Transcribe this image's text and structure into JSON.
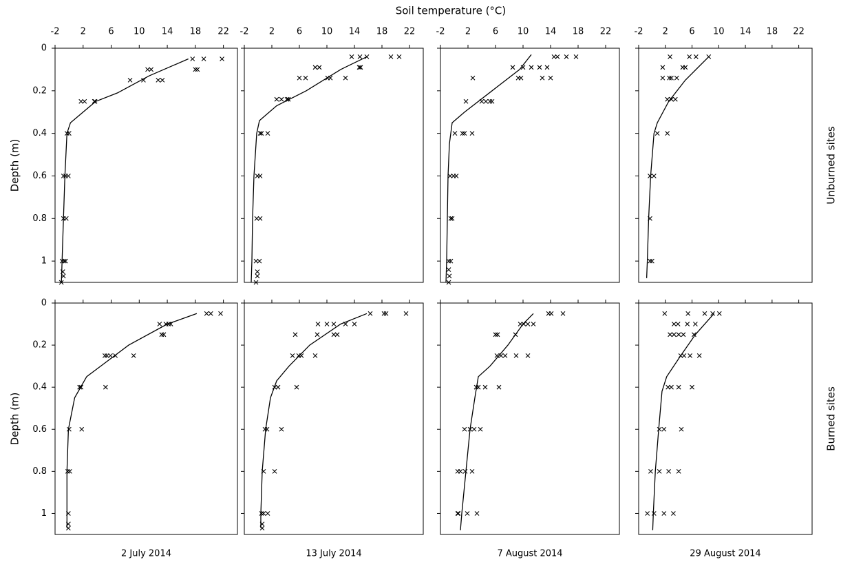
{
  "figure": {
    "x_label": "Soil temperature (°C)"
  },
  "chart_data": [
    {
      "type": "scatter",
      "xlim": [
        -2,
        24
      ],
      "xticks": [
        -2,
        2,
        6,
        10,
        14,
        18,
        22
      ],
      "ylim": [
        0,
        1.1
      ],
      "yticks": [
        0,
        0.2,
        0.4,
        0.6,
        0.8,
        1
      ],
      "y_inverted": true,
      "x_tick_labels": true,
      "y_tick_labels": true,
      "y_label": "Depth (m)",
      "series": [
        {
          "style": "cross",
          "color": "#000000",
          "x": [
            17.6,
            19.2,
            21.8,
            11.2,
            11.7,
            18.0,
            18.3,
            8.7,
            10.6,
            12.7,
            13.3,
            1.7,
            2.2,
            3.6,
            3.7,
            -0.3,
            0,
            -0.8,
            -0.5,
            -0.1,
            -0.8,
            -0.4,
            -1.0,
            -0.7,
            -0.5,
            -0.9,
            -0.8,
            -1.1
          ],
          "values": [
            0.05,
            0.05,
            0.05,
            0.1,
            0.1,
            0.1,
            0.1,
            0.15,
            0.15,
            0.15,
            0.15,
            0.25,
            0.25,
            0.25,
            0.25,
            0.4,
            0.4,
            0.6,
            0.6,
            0.6,
            0.8,
            0.8,
            1,
            1,
            1,
            1.05,
            1.07,
            1.1
          ]
        },
        {
          "style": "line",
          "color": "#000000",
          "x": [
            17.0,
            11.4,
            6.9,
            3.8,
            0.2,
            -0.3,
            -0.6,
            -0.8,
            -1.0,
            -1.1
          ],
          "values": [
            0.05,
            0.13,
            0.21,
            0.25,
            0.35,
            0.4,
            0.6,
            0.8,
            1,
            1.1
          ]
        }
      ]
    },
    {
      "type": "scatter",
      "xlim": [
        -2,
        24
      ],
      "xticks": [
        -2,
        2,
        6,
        10,
        14,
        18,
        22
      ],
      "ylim": [
        0,
        1.1
      ],
      "yticks": [
        0,
        0.2,
        0.4,
        0.6,
        0.8,
        1
      ],
      "y_inverted": true,
      "x_tick_labels": true,
      "y_tick_labels": false,
      "series": [
        {
          "style": "cross",
          "color": "#000000",
          "x": [
            13.6,
            14.8,
            15.8,
            19.3,
            20.5,
            8.3,
            8.9,
            14.7,
            14.9,
            6.0,
            6.9,
            10.1,
            10.5,
            12.7,
            2.7,
            3.4,
            4.2,
            4.4,
            0.3,
            0.5,
            1.4,
            -0.1,
            0.3,
            -0.2,
            0.3,
            -0.3,
            0.2,
            -0.1,
            -0.1,
            -0.3
          ],
          "values": [
            0.04,
            0.04,
            0.04,
            0.04,
            0.04,
            0.09,
            0.09,
            0.09,
            0.09,
            0.14,
            0.14,
            0.14,
            0.14,
            0.14,
            0.24,
            0.24,
            0.24,
            0.24,
            0.4,
            0.4,
            0.4,
            0.6,
            0.6,
            0.8,
            0.8,
            1,
            1,
            1.05,
            1.07,
            1.1
          ]
        },
        {
          "style": "line",
          "color": "#000000",
          "x": [
            15.8,
            12,
            7,
            2.7,
            0.2,
            -0.2,
            -0.6,
            -0.8,
            -0.9,
            -1.0
          ],
          "values": [
            0.04,
            0.1,
            0.2,
            0.27,
            0.34,
            0.4,
            0.6,
            0.8,
            1,
            1.1
          ]
        }
      ]
    },
    {
      "type": "scatter",
      "xlim": [
        -2,
        24
      ],
      "xticks": [
        -2,
        2,
        6,
        10,
        14,
        18,
        22
      ],
      "ylim": [
        0,
        1.1
      ],
      "yticks": [
        0,
        0.2,
        0.4,
        0.6,
        0.8,
        1
      ],
      "y_inverted": true,
      "x_tick_labels": true,
      "y_tick_labels": false,
      "series": [
        {
          "style": "cross",
          "color": "#000000",
          "x": [
            14.5,
            15,
            16.3,
            17.7,
            8.5,
            10,
            11.2,
            12.4,
            13.5,
            2.7,
            9.3,
            9.7,
            12.8,
            14,
            1.7,
            4,
            4.6,
            5.2,
            5.5,
            0.1,
            1.2,
            1.5,
            2.6,
            -0.6,
            -0.1,
            0.3,
            -0.5,
            -0.3,
            -0.8,
            -0.5,
            -0.8,
            -0.7,
            -0.8
          ],
          "values": [
            0.04,
            0.04,
            0.04,
            0.04,
            0.09,
            0.09,
            0.09,
            0.09,
            0.09,
            0.14,
            0.14,
            0.14,
            0.14,
            0.14,
            0.25,
            0.25,
            0.25,
            0.25,
            0.25,
            0.4,
            0.4,
            0.4,
            0.4,
            0.6,
            0.6,
            0.6,
            0.8,
            0.8,
            1,
            1,
            1.04,
            1.07,
            1.1
          ]
        },
        {
          "style": "line",
          "color": "#000000",
          "x": [
            11.2,
            9.5,
            5.5,
            1.5,
            -0.3,
            -0.7,
            -0.9,
            -1.0,
            -1.1,
            -1.2
          ],
          "values": [
            0.03,
            0.1,
            0.2,
            0.3,
            0.35,
            0.45,
            0.6,
            0.8,
            1,
            1.1
          ]
        }
      ]
    },
    {
      "type": "scatter",
      "xlim": [
        -2,
        24
      ],
      "xticks": [
        -2,
        2,
        6,
        10,
        14,
        18,
        22
      ],
      "ylim": [
        0,
        1.1
      ],
      "yticks": [
        0,
        0.2,
        0.4,
        0.6,
        0.8,
        1
      ],
      "y_inverted": true,
      "x_tick_labels": true,
      "y_tick_labels": false,
      "row_label": "Unburned sites",
      "series": [
        {
          "style": "cross",
          "color": "#000000",
          "x": [
            2.7,
            5.6,
            6.6,
            8.5,
            1.6,
            4.6,
            5.0,
            1.6,
            2.6,
            2.9,
            3.7,
            2.3,
            2.9,
            3.5,
            0.8,
            2.3,
            -0.3,
            0.3,
            -0.3,
            -0.3,
            0.0
          ],
          "values": [
            0.04,
            0.04,
            0.04,
            0.04,
            0.09,
            0.09,
            0.09,
            0.14,
            0.14,
            0.14,
            0.14,
            0.24,
            0.24,
            0.24,
            0.4,
            0.4,
            0.6,
            0.6,
            0.8,
            1,
            1
          ]
        },
        {
          "style": "line",
          "color": "#000000",
          "x": [
            8.5,
            5,
            2.5,
            0.8,
            0.3,
            -0.2,
            -0.5,
            -0.7,
            -0.8
          ],
          "values": [
            0.04,
            0.15,
            0.25,
            0.35,
            0.4,
            0.6,
            0.8,
            1,
            1.08
          ]
        }
      ]
    },
    {
      "type": "scatter",
      "title": "2 July 2014",
      "xlim": [
        -2,
        24
      ],
      "xticks": [
        -2,
        2,
        6,
        10,
        14,
        18,
        22
      ],
      "ylim": [
        0,
        1.1
      ],
      "yticks": [
        0,
        0.2,
        0.4,
        0.6,
        0.8,
        1
      ],
      "y_inverted": true,
      "x_tick_labels": false,
      "y_tick_labels": true,
      "y_label": "Depth (m)",
      "series": [
        {
          "style": "cross",
          "color": "#000000",
          "x": [
            19.6,
            20.2,
            21.6,
            12.9,
            13.8,
            14.2,
            14.5,
            13.2,
            13.5,
            5.1,
            5.4,
            5.9,
            6.6,
            9.2,
            1.5,
            1.7,
            5.2,
            0,
            1.8,
            -0.2,
            0.1,
            -0.1,
            -0.1,
            -0.1
          ],
          "values": [
            0.05,
            0.05,
            0.05,
            0.1,
            0.1,
            0.1,
            0.1,
            0.15,
            0.15,
            0.25,
            0.25,
            0.25,
            0.25,
            0.25,
            0.4,
            0.4,
            0.4,
            0.6,
            0.6,
            0.8,
            0.8,
            1,
            1.05,
            1.07
          ]
        },
        {
          "style": "line",
          "color": "#000000",
          "x": [
            18.2,
            14,
            8.5,
            4.5,
            2.5,
            0.8,
            -0.1,
            -0.3,
            -0.3,
            -0.3
          ],
          "values": [
            0.05,
            0.1,
            0.2,
            0.3,
            0.35,
            0.45,
            0.6,
            0.8,
            1,
            1.07
          ]
        }
      ]
    },
    {
      "type": "scatter",
      "title": "13  July 2014",
      "xlim": [
        -2,
        24
      ],
      "xticks": [
        -2,
        2,
        6,
        10,
        14,
        18,
        22
      ],
      "ylim": [
        0,
        1.1
      ],
      "yticks": [
        0,
        0.2,
        0.4,
        0.6,
        0.8,
        1
      ],
      "y_inverted": true,
      "x_tick_labels": false,
      "y_tick_labels": false,
      "series": [
        {
          "style": "cross",
          "color": "#000000",
          "x": [
            16.3,
            18.3,
            18.6,
            21.5,
            8.7,
            10.0,
            11.0,
            12.7,
            14,
            5.4,
            8.6,
            11,
            11.5,
            5.0,
            5.9,
            6.3,
            8.3,
            2.4,
            2.9,
            5.6,
            1.0,
            1.3,
            3.4,
            0.8,
            2.4,
            0.5,
            0.8,
            1.4,
            0.6,
            0.6
          ],
          "values": [
            0.05,
            0.05,
            0.05,
            0.05,
            0.1,
            0.1,
            0.1,
            0.1,
            0.1,
            0.15,
            0.15,
            0.15,
            0.15,
            0.25,
            0.25,
            0.25,
            0.25,
            0.4,
            0.4,
            0.4,
            0.6,
            0.6,
            0.6,
            0.8,
            0.8,
            1,
            1,
            1,
            1.05,
            1.07
          ]
        },
        {
          "style": "line",
          "color": "#000000",
          "x": [
            15.8,
            12,
            7.5,
            4.5,
            2.7,
            1.8,
            1.1,
            0.6,
            0.4,
            0.4
          ],
          "values": [
            0.05,
            0.1,
            0.2,
            0.3,
            0.37,
            0.45,
            0.6,
            0.8,
            1,
            1.07
          ]
        }
      ]
    },
    {
      "type": "scatter",
      "title": "7 August 2014",
      "xlim": [
        -2,
        24
      ],
      "xticks": [
        -2,
        2,
        6,
        10,
        14,
        18,
        22
      ],
      "ylim": [
        0,
        1.1
      ],
      "yticks": [
        0,
        0.2,
        0.4,
        0.6,
        0.8,
        1
      ],
      "y_inverted": true,
      "x_tick_labels": false,
      "y_tick_labels": false,
      "series": [
        {
          "style": "cross",
          "color": "#000000",
          "x": [
            13.7,
            14.1,
            15.8,
            9.6,
            10.1,
            10.7,
            11.5,
            6,
            6.3,
            8.9,
            6.2,
            6.8,
            7.4,
            9,
            10.7,
            3.2,
            3.5,
            4.5,
            6.5,
            1.5,
            2.3,
            2.9,
            3.8,
            0.5,
            0.9,
            1.6,
            2.6,
            0.5,
            0.6,
            1.9,
            3.3
          ],
          "values": [
            0.05,
            0.05,
            0.05,
            0.1,
            0.1,
            0.1,
            0.1,
            0.15,
            0.15,
            0.15,
            0.25,
            0.25,
            0.25,
            0.25,
            0.25,
            0.4,
            0.4,
            0.4,
            0.4,
            0.6,
            0.6,
            0.6,
            0.6,
            0.8,
            0.8,
            0.8,
            0.8,
            1,
            1,
            1,
            1
          ]
        },
        {
          "style": "line",
          "color": "#000000",
          "x": [
            11.5,
            10,
            7.8,
            5.2,
            3.5,
            3.0,
            2.3,
            1.7,
            1.1,
            0.9
          ],
          "values": [
            0.05,
            0.1,
            0.2,
            0.3,
            0.35,
            0.45,
            0.6,
            0.8,
            1,
            1.08
          ]
        }
      ]
    },
    {
      "type": "scatter",
      "title": "29 August 2014",
      "xlim": [
        -2,
        24
      ],
      "xticks": [
        -2,
        2,
        6,
        10,
        14,
        18,
        22
      ],
      "ylim": [
        0,
        1.1
      ],
      "yticks": [
        0,
        0.2,
        0.4,
        0.6,
        0.8,
        1
      ],
      "y_inverted": true,
      "x_tick_labels": false,
      "y_tick_labels": false,
      "row_label": "Burned sites",
      "series": [
        {
          "style": "cross",
          "color": "#000000",
          "x": [
            1.9,
            5.4,
            7.9,
            9.1,
            10.1,
            3.3,
            3.9,
            5.3,
            6.5,
            2.7,
            3.3,
            4,
            4.7,
            6.3,
            4.3,
            4.8,
            5.7,
            7.1,
            2.4,
            2.9,
            4,
            6,
            1.1,
            1.8,
            4.4,
            -0.2,
            1.1,
            2.5,
            4,
            -0.7,
            0.3,
            1.8,
            3.2
          ],
          "values": [
            0.05,
            0.05,
            0.05,
            0.05,
            0.05,
            0.1,
            0.1,
            0.1,
            0.1,
            0.15,
            0.15,
            0.15,
            0.15,
            0.15,
            0.25,
            0.25,
            0.25,
            0.25,
            0.4,
            0.4,
            0.4,
            0.4,
            0.6,
            0.6,
            0.6,
            0.8,
            0.8,
            0.8,
            0.8,
            1,
            1,
            1,
            1
          ]
        },
        {
          "style": "line",
          "color": "#000000",
          "x": [
            9.3,
            6.5,
            4.3,
            2.2,
            1.5,
            1.0,
            0.5,
            0.2,
            0.1
          ],
          "values": [
            0.05,
            0.15,
            0.25,
            0.35,
            0.42,
            0.6,
            0.8,
            1,
            1.08
          ]
        }
      ]
    }
  ]
}
